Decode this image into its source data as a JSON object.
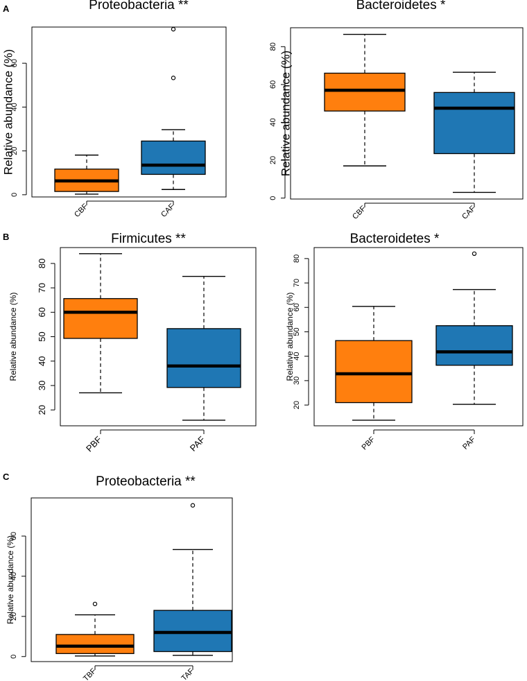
{
  "colors": {
    "before": "#ff7f0e",
    "after": "#1f77b4",
    "line": "#000000"
  },
  "panel_letters": [
    "A",
    "B",
    "C"
  ],
  "chart_data": [
    {
      "type": "boxplot",
      "panel": "A",
      "title": "Proteobacteria **",
      "ylabel": "Relative abundance (%)",
      "xlabel": "",
      "ylim": [
        -1,
        76.5
      ],
      "yticks": [
        0,
        20,
        40,
        60
      ],
      "categories": [
        "CBF",
        "CAF"
      ],
      "boxes": [
        {
          "label": "CBF",
          "whisker_low": 0.3,
          "q1": 1.5,
          "median": 6.3,
          "q3": 11.7,
          "whisker_high": 18.1,
          "outliers": []
        },
        {
          "label": "CAF",
          "whisker_low": 2.4,
          "q1": 9.3,
          "median": 13.5,
          "q3": 24.5,
          "whisker_high": 29.7,
          "outliers": [
            53.3,
            75.5
          ]
        }
      ]
    },
    {
      "type": "boxplot",
      "panel": "A",
      "title": "Bacteroidetes *",
      "ylabel": "Relative abundance (%)",
      "xlabel": "",
      "ylim": [
        -0.5,
        90
      ],
      "yticks": [
        0,
        20,
        40,
        60,
        80
      ],
      "categories": [
        "CBF",
        "CAF"
      ],
      "boxes": [
        {
          "label": "CBF",
          "whisker_low": 17.0,
          "q1": 46.0,
          "median": 57.0,
          "q3": 66.0,
          "whisker_high": 86.5,
          "outliers": []
        },
        {
          "label": "CAF",
          "whisker_low": 3.0,
          "q1": 23.5,
          "median": 47.5,
          "q3": 55.8,
          "whisker_high": 66.5,
          "outliers": []
        }
      ]
    },
    {
      "type": "boxplot",
      "panel": "B",
      "title": "Firmicutes **",
      "ylabel": "Relative abundance (%)",
      "xlabel": "",
      "ylim": [
        13.5,
        86.5
      ],
      "yticks": [
        20,
        30,
        40,
        50,
        60,
        70,
        80
      ],
      "categories": [
        "PBF",
        "PAF"
      ],
      "boxes": [
        {
          "label": "PBF",
          "whisker_low": 27.0,
          "q1": 49.3,
          "median": 60.0,
          "q3": 65.6,
          "whisker_high": 84.0,
          "outliers": []
        },
        {
          "label": "PAF",
          "whisker_low": 15.8,
          "q1": 29.2,
          "median": 38.0,
          "q3": 53.3,
          "whisker_high": 74.7,
          "outliers": []
        }
      ]
    },
    {
      "type": "boxplot",
      "panel": "B",
      "title": "Bacteroidetes *",
      "ylabel": "Relative abundance (%)",
      "xlabel": "",
      "ylim": [
        11.5,
        84.5
      ],
      "yticks": [
        20,
        30,
        40,
        50,
        60,
        70,
        80
      ],
      "categories": [
        "PBF",
        "PAF"
      ],
      "boxes": [
        {
          "label": "PBF",
          "whisker_low": 13.8,
          "q1": 21.0,
          "median": 32.8,
          "q3": 46.4,
          "whisker_high": 60.4,
          "outliers": []
        },
        {
          "label": "PAF",
          "whisker_low": 20.3,
          "q1": 36.3,
          "median": 41.8,
          "q3": 52.5,
          "whisker_high": 67.3,
          "outliers": [
            82.0
          ]
        }
      ]
    },
    {
      "type": "boxplot",
      "panel": "C",
      "title": "Proteobacteria **",
      "ylabel": "Relative abundance (%)",
      "xlabel": "",
      "ylim": [
        -2.5,
        79
      ],
      "yticks": [
        0,
        20,
        40,
        60
      ],
      "categories": [
        "TBF",
        "TAF"
      ],
      "boxes": [
        {
          "label": "TBF",
          "whisker_low": 0.3,
          "q1": 1.5,
          "median": 5.2,
          "q3": 11.0,
          "whisker_high": 20.8,
          "outliers": [
            26.2
          ]
        },
        {
          "label": "TAF",
          "whisker_low": 0.6,
          "q1": 2.5,
          "median": 12.0,
          "q3": 23.0,
          "whisker_high": 53.3,
          "outliers": [
            75.3
          ]
        }
      ]
    }
  ]
}
